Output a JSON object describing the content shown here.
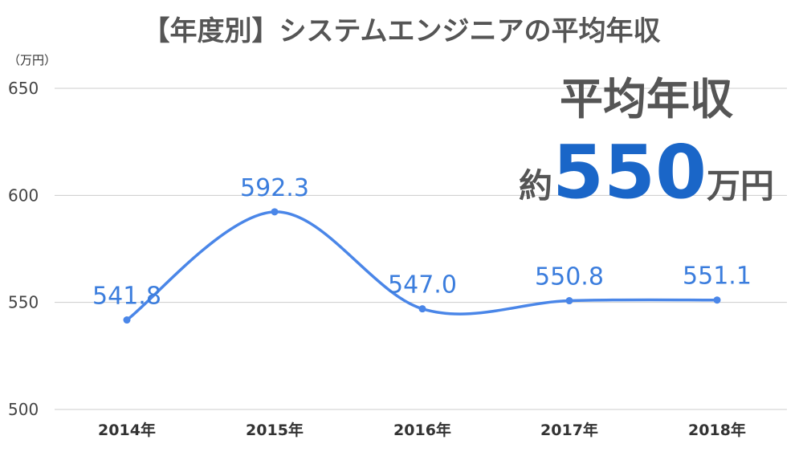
{
  "chart_data": {
    "type": "line",
    "title": "【年度別】システムエンジニアの平均年収",
    "ylabel": "（万円）",
    "xlabel": "",
    "categories": [
      "2014年",
      "2015年",
      "2016年",
      "2017年",
      "2018年"
    ],
    "series": [
      {
        "values": [
          541.8,
          592.3,
          547.0,
          550.8,
          551.1
        ]
      }
    ],
    "data_labels": [
      "541.8",
      "592.3",
      "547.0",
      "550.8",
      "551.1"
    ],
    "yticks": [
      "500",
      "550",
      "600",
      "650"
    ],
    "ylim": [
      500,
      650
    ],
    "grid": true,
    "line_color": "#4a86e8",
    "annotation": {
      "heading": "平均年収",
      "prefix": "約",
      "value": "550",
      "unit": "万円",
      "value_color": "#1a66c8"
    }
  }
}
